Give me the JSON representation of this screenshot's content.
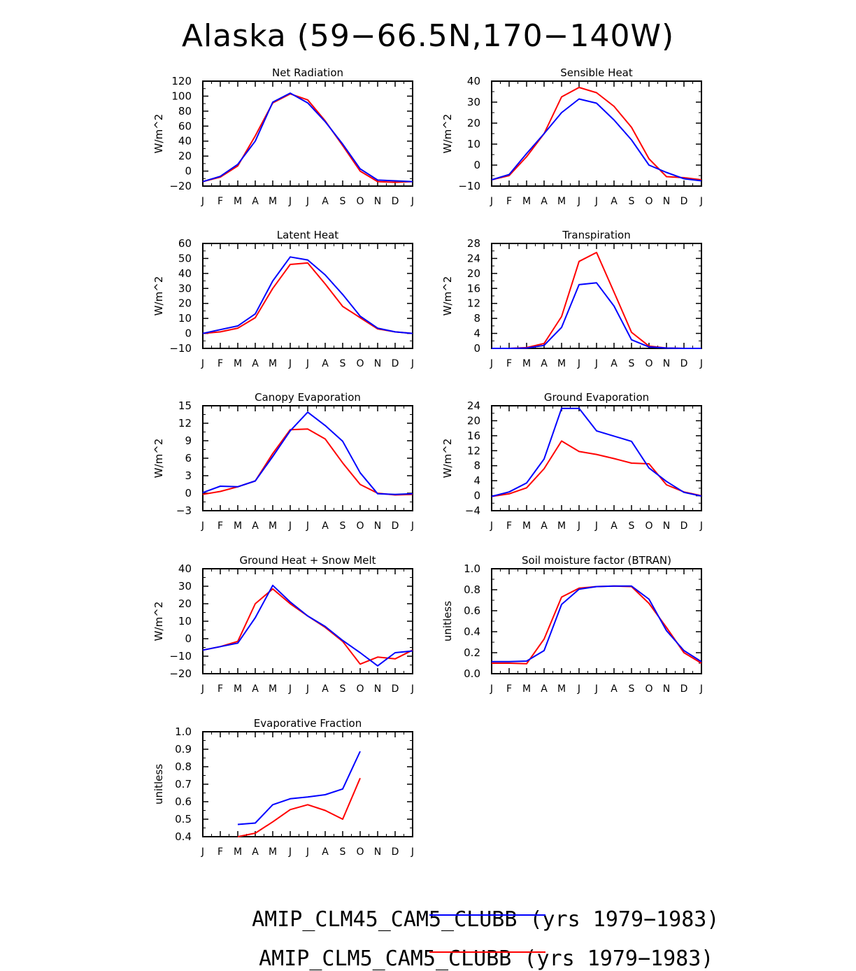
{
  "title": "Alaska (59−66.5N,170−140W)",
  "months": [
    "J",
    "F",
    "M",
    "A",
    "M",
    "J",
    "J",
    "A",
    "S",
    "O",
    "N",
    "D",
    "J"
  ],
  "legend": [
    {
      "label": "AMIP_CLM45_CAM5_CLUBB",
      "suffix": " (yrs 1979−1983)",
      "color": "#0000ff"
    },
    {
      "label": "AMIP_CLM5_CAM5_CLUBB",
      "suffix": " (yrs 1979−1983)",
      "color": "#ff0000"
    }
  ],
  "chart_data": [
    {
      "type": "line",
      "title": "Net Radiation",
      "ylabel": "W/m^2",
      "ylim": [
        -20,
        120
      ],
      "yticks": [
        -20,
        0,
        20,
        40,
        60,
        80,
        100,
        120
      ],
      "ytick_labels": [
        "−20",
        "0",
        "20",
        "40",
        "60",
        "80",
        "100",
        "120"
      ],
      "series": [
        {
          "color": "#ff0000",
          "values": [
            -14,
            -8,
            7,
            47,
            91,
            103,
            95,
            67,
            34,
            0,
            -14,
            -15,
            -14
          ]
        },
        {
          "color": "#0000ff",
          "values": [
            -14,
            -7,
            9,
            40,
            92,
            104,
            91,
            66,
            36,
            3,
            -12,
            -13,
            -14
          ]
        }
      ]
    },
    {
      "type": "line",
      "title": "Sensible Heat",
      "ylabel": "W/m^2",
      "ylim": [
        -10,
        40
      ],
      "yticks": [
        -10,
        0,
        10,
        20,
        30,
        40
      ],
      "ytick_labels": [
        "−10",
        "0",
        "10",
        "20",
        "30",
        "40"
      ],
      "series": [
        {
          "color": "#ff0000",
          "values": [
            -7,
            -5,
            4,
            15,
            32.5,
            37,
            34.5,
            28,
            18,
            3,
            -5.5,
            -6,
            -7
          ]
        },
        {
          "color": "#0000ff",
          "values": [
            -7,
            -4.5,
            5.5,
            15,
            25,
            31.5,
            29.5,
            21.5,
            12,
            0,
            -3.5,
            -6.5,
            -7.5
          ]
        }
      ]
    },
    {
      "type": "line",
      "title": "Latent Heat",
      "ylabel": "W/m^2",
      "ylim": [
        -10,
        60
      ],
      "yticks": [
        -10,
        0,
        10,
        20,
        30,
        40,
        50,
        60
      ],
      "ytick_labels": [
        "−10",
        "0",
        "10",
        "20",
        "30",
        "40",
        "50",
        "60"
      ],
      "series": [
        {
          "color": "#ff0000",
          "values": [
            0,
            1,
            3.5,
            10.5,
            30,
            46,
            47,
            33,
            18,
            10.5,
            3,
            1,
            0
          ]
        },
        {
          "color": "#0000ff",
          "values": [
            0,
            2.5,
            5,
            13,
            35,
            51,
            49,
            39,
            26,
            11.5,
            3.5,
            1,
            0
          ]
        }
      ]
    },
    {
      "type": "line",
      "title": "Transpiration",
      "ylabel": "W/m^2",
      "ylim": [
        0,
        28
      ],
      "yticks": [
        0,
        4,
        8,
        12,
        16,
        20,
        24,
        28
      ],
      "ytick_labels": [
        "0",
        "4",
        "8",
        "12",
        "16",
        "20",
        "24",
        "28"
      ],
      "series": [
        {
          "color": "#ff0000",
          "values": [
            0,
            0,
            0.2,
            1.3,
            8.5,
            23.2,
            25.6,
            15,
            4.3,
            0.6,
            0.1,
            0,
            0
          ]
        },
        {
          "color": "#0000ff",
          "values": [
            0,
            0,
            0.1,
            0.8,
            5.6,
            17,
            17.5,
            11.3,
            2.3,
            0.4,
            0.1,
            0,
            0
          ]
        }
      ]
    },
    {
      "type": "line",
      "title": "Canopy Evaporation",
      "ylabel": "W/m^2",
      "ylim": [
        -3,
        15
      ],
      "yticks": [
        -3,
        0,
        3,
        6,
        9,
        12,
        15
      ],
      "ytick_labels": [
        "−3",
        "0",
        "3",
        "6",
        "9",
        "12",
        "15"
      ],
      "series": [
        {
          "color": "#ff0000",
          "values": [
            -0.2,
            0.3,
            1.1,
            2.1,
            6.8,
            10.9,
            11,
            9.3,
            5.2,
            1.5,
            0,
            -0.3,
            -0.2
          ]
        },
        {
          "color": "#0000ff",
          "values": [
            0.1,
            1.2,
            1.1,
            2.1,
            6.3,
            10.7,
            13.9,
            11.6,
            8.9,
            3.5,
            -0.1,
            -0.2,
            -0.1
          ]
        }
      ]
    },
    {
      "type": "line",
      "title": "Ground Evaporation",
      "ylabel": "W/m^2",
      "ylim": [
        -4,
        24
      ],
      "yticks": [
        -4,
        0,
        4,
        8,
        12,
        16,
        20,
        24
      ],
      "ytick_labels": [
        "−4",
        "0",
        "4",
        "8",
        "12",
        "16",
        "20",
        "24"
      ],
      "series": [
        {
          "color": "#ff0000",
          "values": [
            -0.2,
            0.5,
            2.1,
            7.2,
            14.6,
            11.8,
            11,
            9.9,
            8.7,
            8.5,
            2.9,
            1,
            0
          ]
        },
        {
          "color": "#0000ff",
          "values": [
            -0.2,
            1,
            3.4,
            9.8,
            23.3,
            23.3,
            17.3,
            15.9,
            14.5,
            7.4,
            3.8,
            0.9,
            -0.1
          ]
        }
      ]
    },
    {
      "type": "line",
      "title": "Ground Heat + Snow Melt",
      "ylabel": "W/m^2",
      "ylim": [
        -20,
        40
      ],
      "yticks": [
        -20,
        -10,
        0,
        10,
        20,
        30,
        40
      ],
      "ytick_labels": [
        "−20",
        "−10",
        "0",
        "10",
        "20",
        "30",
        "40"
      ],
      "series": [
        {
          "color": "#ff0000",
          "values": [
            -6.5,
            -4.5,
            -1.5,
            20,
            28.5,
            20,
            13,
            6.5,
            -1.5,
            -14.5,
            -10.5,
            -11.5,
            -6.5
          ]
        },
        {
          "color": "#0000ff",
          "values": [
            -6.5,
            -4.5,
            -2.5,
            12,
            30.5,
            21,
            13,
            7,
            -1,
            -8,
            -15.5,
            -8,
            -7
          ]
        }
      ]
    },
    {
      "type": "line",
      "title": "Soil moisture factor (BTRAN)",
      "ylabel": "unitless",
      "ylim": [
        0,
        1
      ],
      "yticks": [
        0,
        0.2,
        0.4,
        0.6,
        0.8,
        1.0
      ],
      "ytick_labels": [
        "0.0",
        "0.2",
        "0.4",
        "0.6",
        "0.8",
        "1.0"
      ],
      "series": [
        {
          "color": "#ff0000",
          "values": [
            0.1,
            0.1,
            0.095,
            0.33,
            0.73,
            0.815,
            0.83,
            0.835,
            0.83,
            0.67,
            0.44,
            0.2,
            0.1
          ]
        },
        {
          "color": "#0000ff",
          "values": [
            0.115,
            0.115,
            0.12,
            0.22,
            0.66,
            0.805,
            0.83,
            0.835,
            0.835,
            0.71,
            0.41,
            0.22,
            0.115
          ]
        }
      ]
    },
    {
      "type": "line",
      "title": "Evaporative Fraction",
      "ylabel": "unitless",
      "ylim": [
        0.4,
        1.0
      ],
      "yticks": [
        0.4,
        0.5,
        0.6,
        0.7,
        0.8,
        0.9,
        1.0
      ],
      "ytick_labels": [
        "0.4",
        "0.5",
        "0.6",
        "0.7",
        "0.8",
        "0.9",
        "1.0"
      ],
      "series": [
        {
          "color": "#ff0000",
          "values": [
            null,
            null,
            0.4,
            0.42,
            0.485,
            0.555,
            0.583,
            0.55,
            0.5,
            0.735,
            null,
            null,
            null
          ]
        },
        {
          "color": "#0000ff",
          "values": [
            null,
            null,
            0.47,
            0.478,
            0.583,
            0.617,
            0.627,
            0.64,
            0.673,
            0.888,
            null,
            null,
            null
          ]
        }
      ]
    }
  ]
}
